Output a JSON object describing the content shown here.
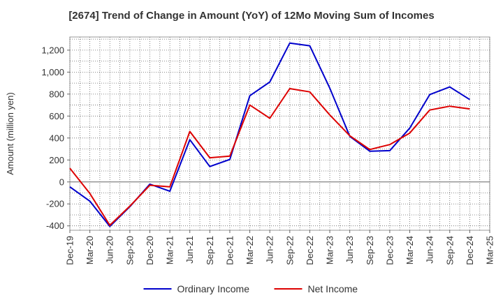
{
  "chart_data": {
    "type": "line",
    "title": "[2674]  Trend of Change in Amount (YoY) of 12Mo Moving Sum of Incomes",
    "ylabel": "Amount (million yen)",
    "xlabel": "",
    "ylim": [
      -440,
      1320
    ],
    "yticks": [
      -400,
      -200,
      0,
      200,
      400,
      600,
      800,
      1000,
      1200
    ],
    "ytick_labels": [
      "-400",
      "-200",
      "0",
      "200",
      "400",
      "600",
      "800",
      "1,000",
      "1,200"
    ],
    "x": [
      "Dec-19",
      "Mar-20",
      "Jun-20",
      "Sep-20",
      "Dec-20",
      "Mar-21",
      "Jun-21",
      "Sep-21",
      "Dec-21",
      "Mar-22",
      "Jun-22",
      "Sep-22",
      "Dec-22",
      "Mar-23",
      "Jun-23",
      "Sep-23",
      "Dec-23",
      "Mar-24",
      "Jun-24",
      "Sep-24",
      "Dec-24",
      "Mar-25"
    ],
    "grid": true,
    "legend_position": "bottom-center",
    "series": [
      {
        "name": "Ordinary Income",
        "color": "#0000cc",
        "values": [
          -45,
          -175,
          -405,
          -225,
          -20,
          -85,
          385,
          140,
          205,
          785,
          910,
          1265,
          1240,
          855,
          415,
          280,
          285,
          490,
          795,
          865,
          750,
          null
        ]
      },
      {
        "name": "Net Income",
        "color": "#dd0000",
        "values": [
          125,
          -105,
          -395,
          -220,
          -30,
          -45,
          460,
          220,
          235,
          700,
          580,
          850,
          820,
          610,
          420,
          295,
          340,
          445,
          655,
          690,
          665,
          null
        ]
      }
    ]
  }
}
